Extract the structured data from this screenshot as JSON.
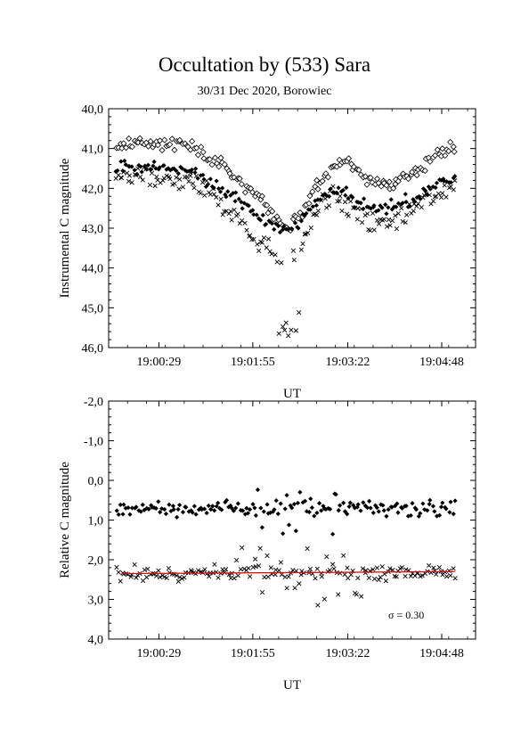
{
  "chart_data": [
    {
      "type": "scatter",
      "title": "Occultation by (533) Sara",
      "subtitle": "30/31 Dec 2020, Borowiec",
      "xlabel": "UT",
      "ylabel": "Instrumental C magnitude",
      "xlim": [
        "18:59:43",
        "19:05:19"
      ],
      "ylim": [
        46.0,
        40.0
      ],
      "y_inverted": true,
      "grid": false,
      "x_tick_labels": [
        "19:00:29",
        "19:01:55",
        "19:03:22",
        "19:04:48"
      ],
      "y_tick_labels": [
        "40,0",
        "41,0",
        "42,0",
        "43,0",
        "44,0",
        "45,0",
        "46,0"
      ],
      "series": [
        {
          "marker": "open-diamond",
          "description": "upper band ~40.8-41.5, dip to ~43.5 around 19:02:10-19:02:40",
          "trend": [
            [
              "18:59:50",
              40.9
            ],
            [
              "19:00:30",
              40.85
            ],
            [
              "19:01:00",
              40.95
            ],
            [
              "19:01:20",
              41.3
            ],
            [
              "19:01:40",
              41.7
            ],
            [
              "19:01:55",
              42.1
            ],
            [
              "19:02:10",
              42.6
            ],
            [
              "19:02:25",
              43.0
            ],
            [
              "19:02:40",
              42.6
            ],
            [
              "19:02:55",
              41.9
            ],
            [
              "19:03:10",
              41.4
            ],
            [
              "19:03:25",
              41.3
            ],
            [
              "19:03:40",
              41.8
            ],
            [
              "19:04:00",
              41.9
            ],
            [
              "19:04:20",
              41.7
            ],
            [
              "19:04:40",
              41.3
            ],
            [
              "19:05:00",
              40.9
            ]
          ]
        },
        {
          "marker": "filled-diamond",
          "description": "~41.5 before, dip to ~43.2 around 19:02:10-19:02:40",
          "trend": [
            [
              "18:59:50",
              41.5
            ],
            [
              "19:00:30",
              41.45
            ],
            [
              "19:01:00",
              41.6
            ],
            [
              "19:01:20",
              41.9
            ],
            [
              "19:01:40",
              42.3
            ],
            [
              "19:01:55",
              42.6
            ],
            [
              "19:02:10",
              42.9
            ],
            [
              "19:02:25",
              43.1
            ],
            [
              "19:02:40",
              42.8
            ],
            [
              "19:02:55",
              42.3
            ],
            [
              "19:03:10",
              42.0
            ],
            [
              "19:03:25",
              42.2
            ],
            [
              "19:03:40",
              42.5
            ],
            [
              "19:04:00",
              42.5
            ],
            [
              "19:04:20",
              42.3
            ],
            [
              "19:04:40",
              42.0
            ],
            [
              "19:05:00",
              41.7
            ]
          ]
        },
        {
          "marker": "cross",
          "description": "~41.8 before, dip to ~45.6 near 19:02:30",
          "trend": [
            [
              "18:59:50",
              41.7
            ],
            [
              "19:00:30",
              41.7
            ],
            [
              "19:01:00",
              41.9
            ],
            [
              "19:01:20",
              42.2
            ],
            [
              "19:01:40",
              42.8
            ],
            [
              "19:01:55",
              43.2
            ],
            [
              "19:02:10",
              43.5
            ],
            [
              "19:02:25",
              44.0
            ],
            [
              "19:02:40",
              43.3
            ],
            [
              "19:02:55",
              42.5
            ],
            [
              "19:03:10",
              42.2
            ],
            [
              "19:03:25",
              42.5
            ],
            [
              "19:03:40",
              42.8
            ],
            [
              "19:04:00",
              42.8
            ],
            [
              "19:04:20",
              42.5
            ],
            [
              "19:04:40",
              42.2
            ],
            [
              "19:05:00",
              41.9
            ]
          ]
        }
      ]
    },
    {
      "type": "scatter",
      "xlabel": "UT",
      "ylabel": "Relative C magnitude",
      "xlim": [
        "18:59:43",
        "19:05:19"
      ],
      "ylim": [
        4.0,
        -2.0
      ],
      "y_inverted": true,
      "grid": false,
      "x_tick_labels": [
        "19:00:29",
        "19:01:55",
        "19:03:22",
        "19:04:48"
      ],
      "y_tick_labels": [
        "-2,0",
        "-1,0",
        "0,0",
        "1,0",
        "2,0",
        "3,0",
        "4,0"
      ],
      "annotation": "σ = 0.30",
      "fit_line": {
        "color": "#e00000",
        "x": [
          "18:59:55",
          "19:05:00"
        ],
        "y": [
          2.35,
          2.3
        ]
      },
      "series": [
        {
          "marker": "filled-diamond",
          "center": 0.7,
          "spread": 0.35
        },
        {
          "marker": "cross",
          "center": 2.35,
          "spread": 0.35
        }
      ]
    }
  ]
}
